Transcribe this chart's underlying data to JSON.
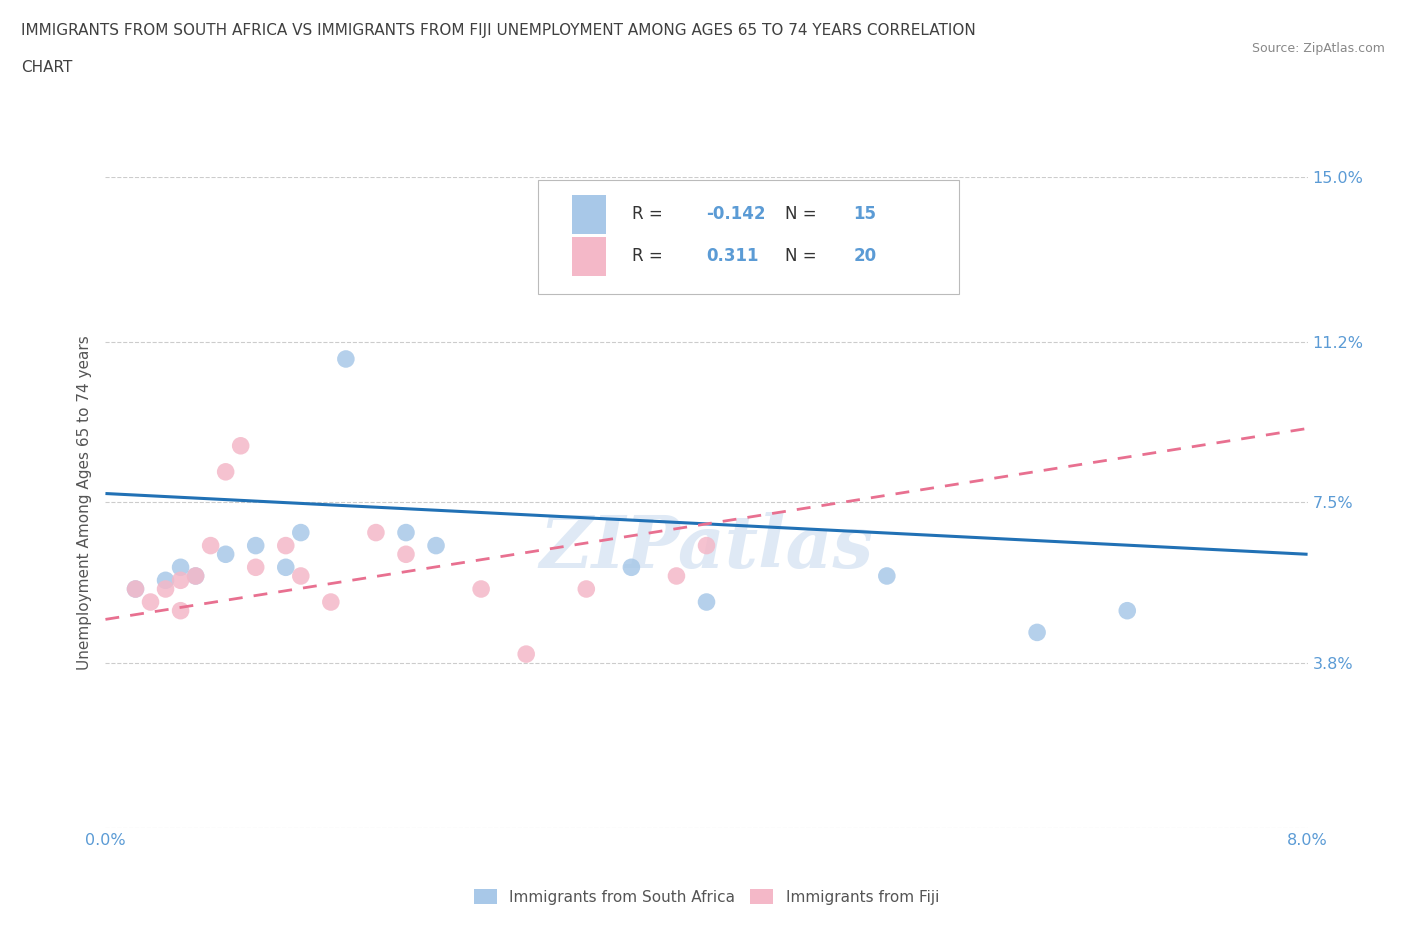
{
  "title_line1": "IMMIGRANTS FROM SOUTH AFRICA VS IMMIGRANTS FROM FIJI UNEMPLOYMENT AMONG AGES 65 TO 74 YEARS CORRELATION",
  "title_line2": "CHART",
  "source_text": "Source: ZipAtlas.com",
  "ylabel": "Unemployment Among Ages 65 to 74 years",
  "xlim": [
    0.0,
    0.08
  ],
  "ylim": [
    0.0,
    0.15
  ],
  "yticks": [
    0.0,
    0.038,
    0.075,
    0.112,
    0.15
  ],
  "ytick_labels": [
    "",
    "3.8%",
    "7.5%",
    "11.2%",
    "15.0%"
  ],
  "xtick_labels": [
    "0.0%",
    "",
    "",
    "",
    "",
    "",
    "",
    "",
    "8.0%"
  ],
  "blue_color": "#a8c8e8",
  "pink_color": "#f4b8c8",
  "blue_line_color": "#2171b5",
  "pink_line_color": "#e87090",
  "watermark": "ZIPatlas",
  "legend_label_blue": "Immigrants from South Africa",
  "legend_label_pink": "Immigrants from Fiji",
  "south_africa_x": [
    0.002,
    0.004,
    0.005,
    0.006,
    0.008,
    0.01,
    0.012,
    0.013,
    0.016,
    0.02,
    0.022,
    0.035,
    0.04,
    0.052,
    0.062,
    0.068
  ],
  "south_africa_y": [
    0.055,
    0.057,
    0.06,
    0.058,
    0.063,
    0.065,
    0.06,
    0.068,
    0.108,
    0.068,
    0.065,
    0.06,
    0.052,
    0.058,
    0.045,
    0.05
  ],
  "fiji_x": [
    0.002,
    0.003,
    0.004,
    0.005,
    0.005,
    0.006,
    0.007,
    0.008,
    0.009,
    0.01,
    0.012,
    0.013,
    0.015,
    0.018,
    0.02,
    0.025,
    0.028,
    0.032,
    0.038,
    0.04
  ],
  "fiji_y": [
    0.055,
    0.052,
    0.055,
    0.057,
    0.05,
    0.058,
    0.065,
    0.082,
    0.088,
    0.06,
    0.065,
    0.058,
    0.052,
    0.068,
    0.063,
    0.055,
    0.04,
    0.055,
    0.058,
    0.065
  ],
  "blue_trend_x": [
    0.0,
    0.08
  ],
  "blue_trend_y": [
    0.077,
    0.063
  ],
  "pink_trend_x": [
    0.0,
    0.08
  ],
  "pink_trend_y": [
    0.048,
    0.092
  ],
  "background_color": "#ffffff",
  "grid_color": "#cccccc",
  "title_color": "#404040",
  "axis_label_color": "#555555",
  "tick_color": "#5b9bd5",
  "dot_size": 160,
  "legend_r_color": "#5b9bd5",
  "legend_n_color": "#5b9bd5",
  "legend_text_color": "#333333"
}
